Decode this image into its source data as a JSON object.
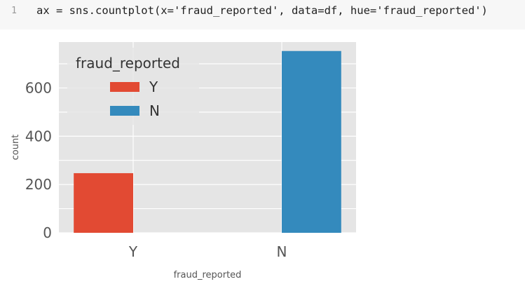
{
  "code_cell": {
    "line_number": "1",
    "code": "ax = sns.countplot(x='fraud_reported', data=df, hue='fraud_reported')"
  },
  "chart_data": {
    "type": "bar",
    "categories": [
      "Y",
      "N"
    ],
    "series": [
      {
        "name": "Y",
        "color": "#e24a33",
        "values": [
          247,
          null
        ]
      },
      {
        "name": "N",
        "color": "#348abd",
        "values": [
          null,
          753
        ]
      }
    ],
    "xlabel": "fraud_reported",
    "ylabel": "count",
    "ylim": [
      0,
      790
    ],
    "yticks": [
      0,
      200,
      400,
      600
    ],
    "grid": true,
    "background": "#e5e5e5",
    "legend": {
      "title": "fraud_reported",
      "placement": "top-left",
      "entries": [
        "Y",
        "N"
      ]
    }
  }
}
